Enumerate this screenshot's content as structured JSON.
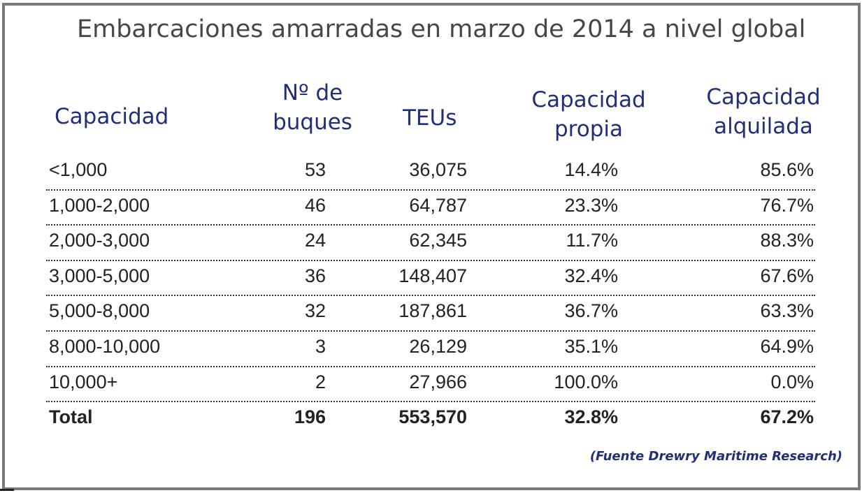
{
  "title": "Embarcaciones amarradas en marzo de 2014 a nivel global",
  "headers": {
    "capacidad": "Capacidad",
    "buques_1": "Nº de",
    "buques_2": "buques",
    "teus": "TEUs",
    "propia_1": "Capacidad",
    "propia_2": "propia",
    "alquilada_1": "Capacidad",
    "alquilada_2": "alquilada"
  },
  "rows": [
    {
      "capacidad": "<1,000",
      "buques": "53",
      "teus": "36,075",
      "propia": "14.4%",
      "alquilada": "85.6%"
    },
    {
      "capacidad": "1,000-2,000",
      "buques": "46",
      "teus": "64,787",
      "propia": "23.3%",
      "alquilada": "76.7%"
    },
    {
      "capacidad": "2,000-3,000",
      "buques": "24",
      "teus": "62,345",
      "propia": "11.7%",
      "alquilada": "88.3%"
    },
    {
      "capacidad": "3,000-5,000",
      "buques": "36",
      "teus": "148,407",
      "propia": "32.4%",
      "alquilada": "67.6%"
    },
    {
      "capacidad": "5,000-8,000",
      "buques": "32",
      "teus": "187,861",
      "propia": "36.7%",
      "alquilada": "63.3%"
    },
    {
      "capacidad": "8,000-10,000",
      "buques": "3",
      "teus": "26,129",
      "propia": "35.1%",
      "alquilada": "64.9%"
    },
    {
      "capacidad": "10,000+",
      "buques": "2",
      "teus": "27,966",
      "propia": "100.0%",
      "alquilada": "0.0%"
    },
    {
      "capacidad": "Total",
      "buques": "196",
      "teus": "553,570",
      "propia": "32.8%",
      "alquilada": "67.2%"
    }
  ],
  "source": "(Fuente Drewry Maritime Research)",
  "colors": {
    "header": "#1f2f7a",
    "title": "#474747",
    "border": "#7a7a7a"
  }
}
